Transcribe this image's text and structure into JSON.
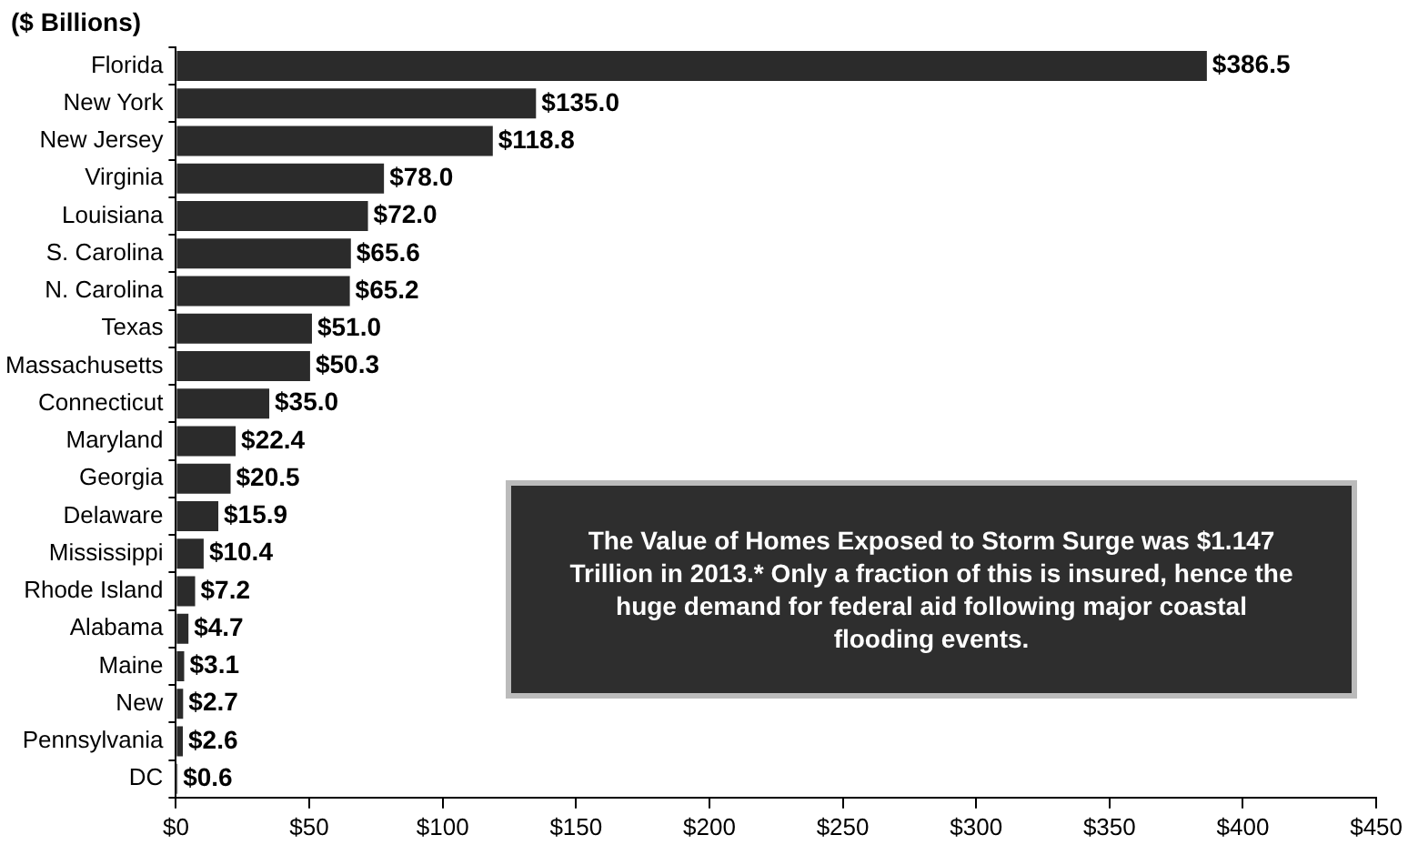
{
  "chart_data": {
    "type": "bar",
    "orientation": "horizontal",
    "title": "($ Billions)",
    "categories": [
      "Florida",
      "New York",
      "New Jersey",
      "Virginia",
      "Louisiana",
      "S. Carolina",
      "N. Carolina",
      "Texas",
      "Massachusetts",
      "Connecticut",
      "Maryland",
      "Georgia",
      "Delaware",
      "Mississippi",
      "Rhode Island",
      "Alabama",
      "Maine",
      "New",
      "Pennsylvania",
      "DC"
    ],
    "values": [
      386.5,
      135.0,
      118.8,
      78.0,
      72.0,
      65.6,
      65.2,
      51.0,
      50.3,
      35.0,
      22.4,
      20.5,
      15.9,
      10.4,
      7.2,
      4.7,
      3.1,
      2.7,
      2.6,
      0.6
    ],
    "value_labels": [
      "$386.5",
      "$135.0",
      "$118.8",
      "$78.0",
      "$72.0",
      "$65.6",
      "$65.2",
      "$51.0",
      "$50.3",
      "$35.0",
      "$22.4",
      "$20.5",
      "$15.9",
      "$10.4",
      "$7.2",
      "$4.7",
      "$3.1",
      "$2.7",
      "$2.6",
      "$0.6"
    ],
    "color": "#2b2b2b",
    "xlim": [
      0,
      450
    ],
    "xticks": [
      {
        "value": 0,
        "label": "$0"
      },
      {
        "value": 50,
        "label": "$50"
      },
      {
        "value": 100,
        "label": "$100"
      },
      {
        "value": 150,
        "label": "$150"
      },
      {
        "value": 200,
        "label": "$200"
      },
      {
        "value": 250,
        "label": "$250"
      },
      {
        "value": 300,
        "label": "$300"
      },
      {
        "value": 350,
        "label": "$350"
      },
      {
        "value": 400,
        "label": "$400"
      },
      {
        "value": 450,
        "label": "$450"
      }
    ],
    "grid": false,
    "legend": false,
    "annotations": [
      "The Value of Homes Exposed to Storm Surge was $1.147 Trillion in 2013.*  Only a fraction of this is insured, hence the huge demand for federal aid following major coastal flooding events."
    ]
  }
}
